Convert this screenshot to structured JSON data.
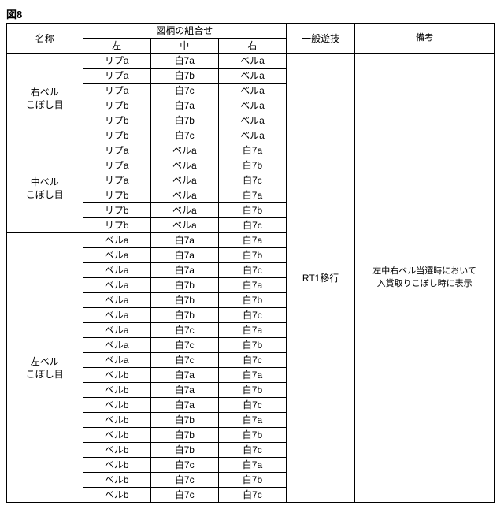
{
  "figure_label": "図8",
  "headers": {
    "name": "名称",
    "pattern_combo": "図柄の組合せ",
    "left": "左",
    "center": "中",
    "right": "右",
    "game": "一般遊技",
    "remarks": "備考"
  },
  "groups": [
    {
      "name": "右ベル\nこぼし目",
      "rows": [
        [
          "リプa",
          "白7a",
          "ベルa"
        ],
        [
          "リプa",
          "白7b",
          "ベルa"
        ],
        [
          "リプa",
          "白7c",
          "ベルa"
        ],
        [
          "リプb",
          "白7a",
          "ベルa"
        ],
        [
          "リプb",
          "白7b",
          "ベルa"
        ],
        [
          "リプb",
          "白7c",
          "ベルa"
        ]
      ]
    },
    {
      "name": "中ベル\nこぼし目",
      "rows": [
        [
          "リプa",
          "ベルa",
          "白7a"
        ],
        [
          "リプa",
          "ベルa",
          "白7b"
        ],
        [
          "リプa",
          "ベルa",
          "白7c"
        ],
        [
          "リプb",
          "ベルa",
          "白7a"
        ],
        [
          "リプb",
          "ベルa",
          "白7b"
        ],
        [
          "リプb",
          "ベルa",
          "白7c"
        ]
      ]
    },
    {
      "name": "左ベル\nこぼし目",
      "rows": [
        [
          "ベルa",
          "白7a",
          "白7a"
        ],
        [
          "ベルa",
          "白7a",
          "白7b"
        ],
        [
          "ベルa",
          "白7a",
          "白7c"
        ],
        [
          "ベルa",
          "白7b",
          "白7a"
        ],
        [
          "ベルa",
          "白7b",
          "白7b"
        ],
        [
          "ベルa",
          "白7b",
          "白7c"
        ],
        [
          "ベルa",
          "白7c",
          "白7a"
        ],
        [
          "ベルa",
          "白7c",
          "白7b"
        ],
        [
          "ベルa",
          "白7c",
          "白7c"
        ],
        [
          "ベルb",
          "白7a",
          "白7a"
        ],
        [
          "ベルb",
          "白7a",
          "白7b"
        ],
        [
          "ベルb",
          "白7a",
          "白7c"
        ],
        [
          "ベルb",
          "白7b",
          "白7a"
        ],
        [
          "ベルb",
          "白7b",
          "白7b"
        ],
        [
          "ベルb",
          "白7b",
          "白7c"
        ],
        [
          "ベルb",
          "白7c",
          "白7a"
        ],
        [
          "ベルb",
          "白7c",
          "白7b"
        ],
        [
          "ベルb",
          "白7c",
          "白7c"
        ]
      ]
    }
  ],
  "game_value": "RT1移行",
  "remarks_value": "左中右ベル当選時において\n入賞取りこぼし時に表示"
}
